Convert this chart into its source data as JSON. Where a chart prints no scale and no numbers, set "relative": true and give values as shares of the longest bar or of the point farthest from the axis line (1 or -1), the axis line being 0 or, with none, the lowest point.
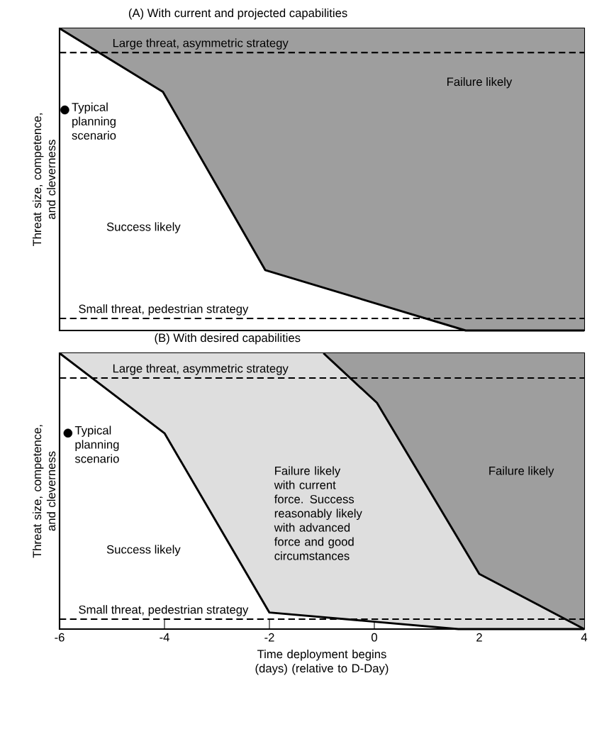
{
  "chart_data": [
    {
      "type": "line",
      "title": "(A) With current and projected capabilities",
      "ylabel": "Threat size, competence, and cleverness",
      "relative": true,
      "xlim": [
        -6,
        4
      ],
      "tick_labels": false,
      "series": [
        {
          "color": "#000000",
          "x": [
            -6,
            -4.03,
            -2.08,
            1.74,
            4
          ],
          "values": [
            1,
            0.79,
            0.2,
            0,
            0
          ],
          "lower": [
            1,
            0.79,
            0.2,
            0,
            0
          ],
          "upper": [
            1,
            1,
            1,
            1,
            1
          ]
        },
        {
          "type": "scatter",
          "name": "Typical planning scenario",
          "color": "#000000",
          "marker": "circle",
          "x": [
            -5.9
          ],
          "values": [
            0.73
          ]
        }
      ],
      "ref_lines": [
        {
          "axis": "y",
          "value": 0.92,
          "label": "Large threat, asymmetric strategy",
          "line_style": "dashed"
        },
        {
          "axis": "y",
          "value": 0.04,
          "label": "Small threat, pedestrian strategy",
          "line_style": "dashed"
        }
      ],
      "annotations": [
        "Failure likely",
        "Success likely"
      ]
    },
    {
      "type": "line",
      "title": "(B) With desired capabilities",
      "ylabel": "Threat size, competence, and cleverness",
      "xlabel": "Time deployment begins (days) (relative to D-Day)",
      "relative": true,
      "xlim": [
        -6,
        4
      ],
      "xticks": [
        -6,
        -4,
        -2,
        0,
        2,
        4
      ],
      "tick_labels": "x",
      "series": [
        {
          "color": "#000000",
          "x": [
            -6,
            -4,
            -2,
            1.6,
            4
          ],
          "values": [
            1,
            0.71,
            0.06,
            0,
            0
          ],
          "lower": [
            1,
            0.71,
            0.06,
            0,
            0
          ],
          "upper": [
            1,
            1,
            1,
            1,
            1
          ]
        },
        {
          "color": "#000000",
          "x": [
            -0.97,
            0.05,
            2.0,
            4
          ],
          "values": [
            1,
            0.82,
            0.2,
            0
          ],
          "lower": [
            1,
            0.82,
            0.2,
            0
          ],
          "upper": [
            1,
            1,
            1,
            1
          ]
        },
        {
          "type": "scatter",
          "name": "Typical planning scenario",
          "color": "#000000",
          "marker": "circle",
          "x": [
            -5.84
          ],
          "values": [
            0.71
          ]
        }
      ],
      "ref_lines": [
        {
          "axis": "y",
          "value": 0.91,
          "label": "Large threat, asymmetric strategy",
          "line_style": "dashed"
        },
        {
          "axis": "y",
          "value": 0.036,
          "label": "Small threat, pedestrian strategy",
          "line_style": "dashed"
        }
      ],
      "annotations": [
        "Failure likely",
        "Success likely",
        "Failure likely with current force. Success reasonably likely with advanced force and good circumstances"
      ]
    }
  ]
}
